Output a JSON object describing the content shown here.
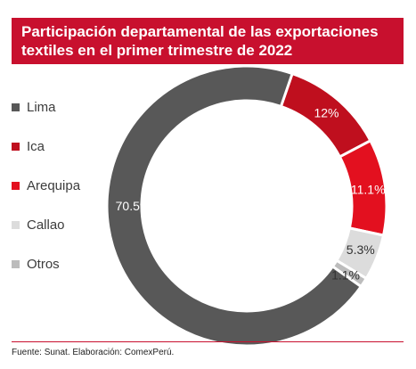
{
  "header": {
    "title_line1": "Participación departamental de las exportaciones",
    "title_line2": "textiles en el primer trimestre de 2022"
  },
  "colors": {
    "title_bg": "#c8102e",
    "footer_rule": "#c8102e"
  },
  "chart_data": {
    "type": "pie",
    "style": "donut",
    "legend_position": "left",
    "categories": [
      "Lima",
      "Ica",
      "Arequipa",
      "Callao",
      "Otros"
    ],
    "values": [
      70.5,
      12,
      11.1,
      5.3,
      1.1
    ],
    "value_labels": [
      "70.5%",
      "12%",
      "11.1%",
      "5.3%",
      "1.1%"
    ],
    "colors": [
      "#585858",
      "#bf0f1e",
      "#e3101f",
      "#dcdcdc",
      "#bcbcbc"
    ]
  },
  "footer": {
    "source": "Fuente: Sunat. Elaboración: ComexPerú."
  }
}
